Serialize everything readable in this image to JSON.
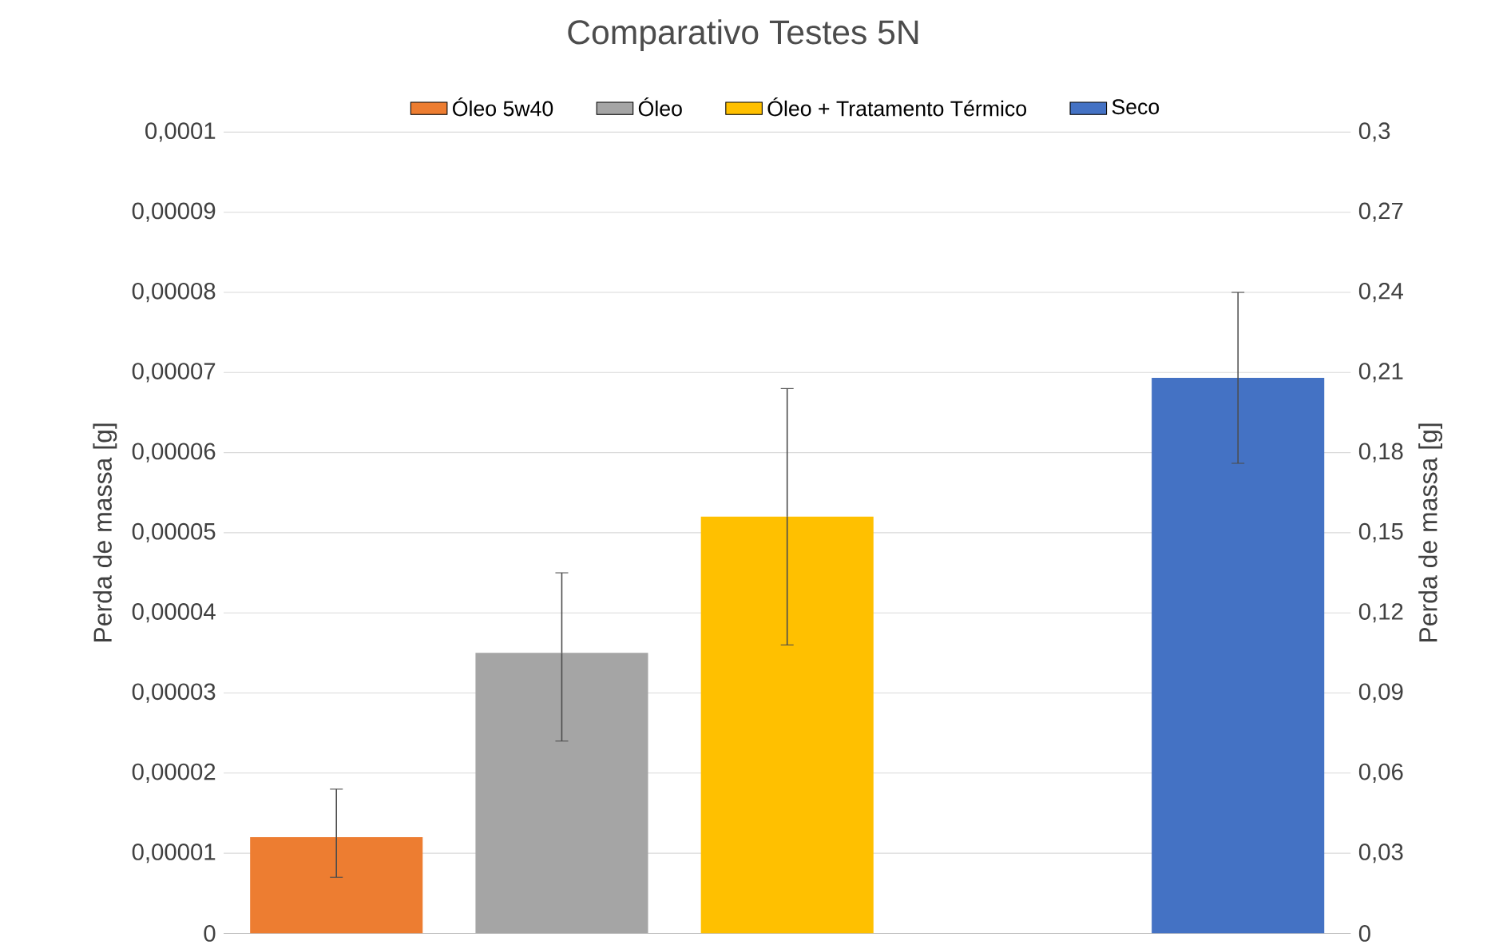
{
  "chart_data": {
    "type": "bar",
    "title": "Comparativo Testes 5N",
    "categories": [
      null,
      null,
      null,
      null,
      null
    ],
    "series": [
      {
        "name": "Óleo 5w40",
        "color": "#ed7d31",
        "values": [
          1.2e-05,
          null,
          null,
          null,
          null
        ],
        "errors": [
          [
            7e-06,
            1.8e-05
          ],
          null,
          null,
          null,
          null
        ]
      },
      {
        "name": "Óleo",
        "color": "#a5a5a5",
        "values": [
          null,
          3.5e-05,
          null,
          null,
          null
        ],
        "errors": [
          null,
          [
            2.4e-05,
            4.5e-05
          ],
          null,
          null,
          null
        ]
      },
      {
        "name": "Óleo + Tratamento Térmico",
        "color": "#ffc000",
        "values": [
          null,
          null,
          5.2e-05,
          null,
          null
        ],
        "errors": [
          null,
          null,
          [
            3.6e-05,
            6.8e-05
          ],
          null,
          null
        ]
      },
      {
        "name": "Seco",
        "color": "#4472c4",
        "axis": "y2",
        "values": [
          null,
          null,
          null,
          null,
          0.208
        ],
        "errors": [
          null,
          null,
          null,
          null,
          [
            0.176,
            0.24
          ]
        ]
      }
    ],
    "ylabel": "Perda de massa [g]",
    "y2label": "Perda de massa [g]",
    "ylim": [
      0,
      0.0001
    ],
    "yticks": [
      0,
      {
        "value": 1e-05,
        "label": "0,00001"
      },
      {
        "value": 2e-05,
        "label": "0,00002"
      },
      {
        "value": 3e-05,
        "label": "0,00003"
      },
      {
        "value": 4e-05,
        "label": "0,00004"
      },
      {
        "value": 5e-05,
        "label": "0,00005"
      },
      {
        "value": 6e-05,
        "label": "0,00006"
      },
      {
        "value": 7e-05,
        "label": "0,00007"
      },
      {
        "value": 8e-05,
        "label": "0,00008"
      },
      {
        "value": 9e-05,
        "label": "0,00009"
      },
      {
        "value": 0.0001,
        "label": "0,0001"
      }
    ],
    "y2lim": [
      0,
      0.3
    ],
    "y2ticks": [
      0,
      {
        "value": 0.03,
        "label": "0,03"
      },
      {
        "value": 0.06,
        "label": "0,06"
      },
      {
        "value": 0.09,
        "label": "0,09"
      },
      {
        "value": 0.12,
        "label": "0,12"
      },
      {
        "value": 0.15,
        "label": "0,15"
      },
      {
        "value": 0.18,
        "label": "0,18"
      },
      {
        "value": 0.21,
        "label": "0,21"
      },
      {
        "value": 0.24,
        "label": "0,24"
      },
      {
        "value": 0.27,
        "label": "0,27"
      },
      {
        "value": 0.3,
        "label": "0,3"
      }
    ],
    "grid": "y",
    "legend": "top"
  }
}
